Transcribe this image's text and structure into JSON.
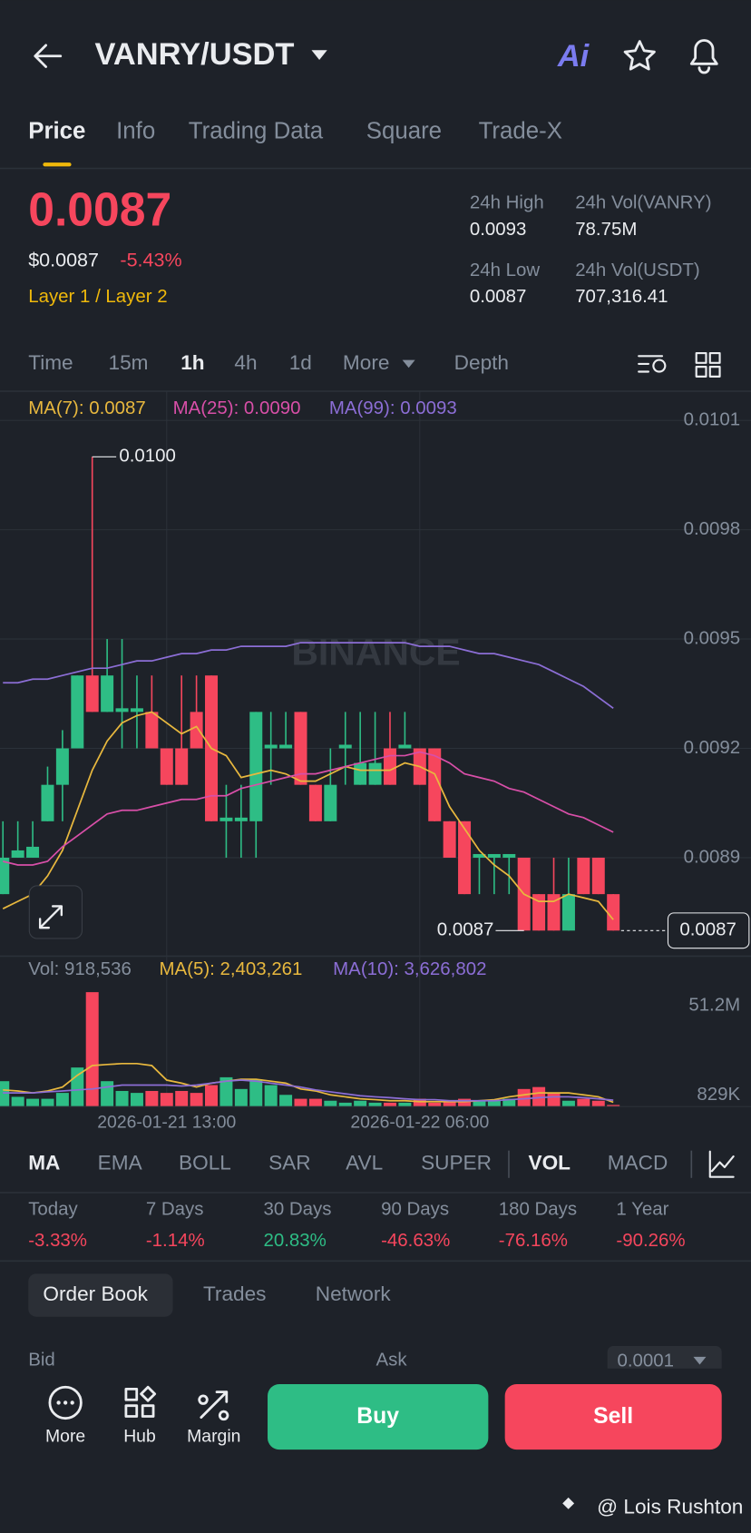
{
  "header": {
    "title": "VANRY/USDT",
    "ai_badge": "Ai"
  },
  "tabs": {
    "items": [
      "Price",
      "Info",
      "Trading Data",
      "Square",
      "Trade-X"
    ],
    "active": 0
  },
  "price": {
    "last": "0.0087",
    "usd": "$0.0087",
    "change": "-5.43%",
    "sector": "Layer 1 / Layer 2"
  },
  "stats": [
    {
      "label": "24h High",
      "value": "0.0093"
    },
    {
      "label": "24h Vol(VANRY)",
      "value": "78.75M"
    },
    {
      "label": "24h Low",
      "value": "0.0087"
    },
    {
      "label": "24h Vol(USDT)",
      "value": "707,316.41"
    }
  ],
  "intervals": {
    "items": [
      "Time",
      "15m",
      "1h",
      "4h",
      "1d",
      "More",
      "Depth"
    ],
    "active": 2
  },
  "chart_data": [
    {
      "type": "candlestick",
      "watermark": "BINANCE",
      "up_color": "#2ebd85",
      "down_color": "#f6465d",
      "open": [
        0.0088,
        0.0089,
        0.0089,
        0.009,
        0.0091,
        0.0092,
        0.0094,
        0.0093,
        0.0093,
        0.0093,
        0.0093,
        0.0092,
        0.0092,
        0.0093,
        0.0094,
        0.009,
        0.009,
        0.009,
        0.0092,
        0.0092,
        0.0093,
        0.0091,
        0.009,
        0.0092,
        0.0091,
        0.0091,
        0.0092,
        0.0092,
        0.0092,
        0.0092,
        0.009,
        0.009,
        0.0089,
        0.0089,
        0.0089,
        0.0089,
        0.0088,
        0.0088,
        0.0087,
        0.0089,
        0.0089,
        0.0088
      ],
      "high": [
        0.009,
        0.009,
        0.009,
        0.00915,
        0.00925,
        0.0094,
        0.01,
        0.0095,
        0.0095,
        0.0094,
        0.0094,
        0.0092,
        0.0094,
        0.0094,
        0.0094,
        0.0091,
        0.0091,
        0.0093,
        0.0093,
        0.0093,
        0.0093,
        0.0091,
        0.0092,
        0.0093,
        0.0093,
        0.0093,
        0.0093,
        0.0093,
        0.0092,
        0.0092,
        0.009,
        0.009,
        0.0089,
        0.0089,
        0.0089,
        0.0089,
        0.0088,
        0.0089,
        0.0089,
        0.0089,
        0.0089,
        0.0088
      ],
      "low": [
        0.0088,
        0.0089,
        0.0089,
        0.009,
        0.009,
        0.0092,
        0.0093,
        0.0093,
        0.0092,
        0.0092,
        0.0092,
        0.0091,
        0.0091,
        0.0092,
        0.009,
        0.0089,
        0.0089,
        0.0089,
        0.0091,
        0.0092,
        0.0091,
        0.009,
        0.009,
        0.0091,
        0.0091,
        0.0091,
        0.0091,
        0.0092,
        0.0091,
        0.009,
        0.0089,
        0.0088,
        0.0088,
        0.0088,
        0.0088,
        0.0087,
        0.0087,
        0.0087,
        0.0087,
        0.0088,
        0.0088,
        0.0087
      ],
      "close": [
        0.0089,
        0.00892,
        0.00893,
        0.0091,
        0.0092,
        0.0094,
        0.0093,
        0.0094,
        0.00931,
        0.00931,
        0.0092,
        0.0091,
        0.0091,
        0.0092,
        0.009,
        0.00901,
        0.00901,
        0.0093,
        0.00921,
        0.00921,
        0.0091,
        0.009,
        0.0091,
        0.00921,
        0.00916,
        0.00916,
        0.0091,
        0.00921,
        0.0091,
        0.009,
        0.0089,
        0.0088,
        0.00891,
        0.00891,
        0.00891,
        0.0087,
        0.0087,
        0.0087,
        0.0088,
        0.0088,
        0.0088,
        0.0087
      ],
      "ylim": [
        0.00863,
        0.01018
      ],
      "yticks": [
        0.0101,
        0.0098,
        0.0095,
        0.0092,
        0.0089
      ],
      "high_marker": {
        "value": 0.01,
        "label": "0.0100"
      },
      "low_marker": {
        "value": 0.0087,
        "label": "0.0087"
      },
      "last_price": {
        "value": 0.0087,
        "label": "0.0087"
      },
      "series": [
        {
          "name": "MA(7): 0.0087",
          "color": "#e8b83e",
          "values": [
            0.00876,
            0.00878,
            0.0088,
            0.00885,
            0.00892,
            0.00903,
            0.00914,
            0.00922,
            0.00927,
            0.00929,
            0.0093,
            0.00927,
            0.00924,
            0.00926,
            0.0092,
            0.00918,
            0.00912,
            0.00913,
            0.00914,
            0.00913,
            0.00911,
            0.00911,
            0.00913,
            0.00915,
            0.00914,
            0.00914,
            0.00914,
            0.00916,
            0.00915,
            0.00913,
            0.00904,
            0.00898,
            0.00892,
            0.00888,
            0.00885,
            0.0088,
            0.00878,
            0.00878,
            0.0088,
            0.00879,
            0.00878,
            0.00873
          ]
        },
        {
          "name": "MA(25): 0.0090",
          "color": "#d84fa8",
          "values": [
            0.00889,
            0.00888,
            0.00888,
            0.00889,
            0.00893,
            0.00896,
            0.00899,
            0.00902,
            0.00903,
            0.00903,
            0.00904,
            0.00905,
            0.00906,
            0.00906,
            0.00907,
            0.00907,
            0.00909,
            0.0091,
            0.00911,
            0.00912,
            0.00913,
            0.00913,
            0.00914,
            0.00915,
            0.00916,
            0.00917,
            0.00918,
            0.00918,
            0.00919,
            0.00918,
            0.00916,
            0.00913,
            0.00912,
            0.00911,
            0.00909,
            0.00908,
            0.00906,
            0.00904,
            0.00902,
            0.00901,
            0.00899,
            0.00897
          ]
        },
        {
          "name": "MA(99): 0.0093",
          "color": "#8c6ed6",
          "values": [
            0.00938,
            0.00938,
            0.00939,
            0.00939,
            0.0094,
            0.00941,
            0.00942,
            0.00942,
            0.00943,
            0.00944,
            0.00944,
            0.00945,
            0.00946,
            0.00946,
            0.00947,
            0.00947,
            0.00948,
            0.00948,
            0.00948,
            0.00948,
            0.00949,
            0.00949,
            0.00949,
            0.00949,
            0.00949,
            0.00949,
            0.00949,
            0.00949,
            0.00948,
            0.00948,
            0.00948,
            0.00947,
            0.00946,
            0.00946,
            0.00945,
            0.00944,
            0.00943,
            0.00941,
            0.00939,
            0.00937,
            0.00934,
            0.00931
          ]
        }
      ]
    },
    {
      "type": "bar",
      "title": "Vol: 918,536",
      "categories": [
        null,
        null,
        null,
        null,
        null,
        null,
        null,
        null,
        null,
        null,
        null,
        "2026-01-21 13:00",
        null,
        null,
        null,
        null,
        null,
        null,
        null,
        null,
        null,
        null,
        null,
        null,
        null,
        null,
        null,
        null,
        "2026-01-22 06:00",
        null,
        null,
        null,
        null,
        null,
        null,
        null,
        null,
        null,
        null,
        null,
        null,
        null
      ],
      "values": [
        14300000,
        5500000,
        4400000,
        4400000,
        7700000,
        22000000,
        64400000,
        14300000,
        8800000,
        7700000,
        8800000,
        7700000,
        8800000,
        7700000,
        12100000,
        16500000,
        9900000,
        15400000,
        12100000,
        6600000,
        4400000,
        4400000,
        3300000,
        2200000,
        3300000,
        2200000,
        2200000,
        2200000,
        4400000,
        2200000,
        3300000,
        4400000,
        3300000,
        3300000,
        4400000,
        9900000,
        11000000,
        7700000,
        3300000,
        4400000,
        3300000,
        918536
      ],
      "ylim": [
        0,
        72600000
      ],
      "yticks": [
        {
          "value": 51200000,
          "label": "51.2M"
        },
        {
          "value": 829000,
          "label": "829K"
        }
      ],
      "series": [
        {
          "name": "MA(5): 2,403,261",
          "color": "#e8b83e",
          "values": [
            9400000,
            8800000,
            7700000,
            8800000,
            11000000,
            17600000,
            23100000,
            23700000,
            24200000,
            24200000,
            23100000,
            14900000,
            13200000,
            11000000,
            13200000,
            14300000,
            15400000,
            15400000,
            14300000,
            13200000,
            9900000,
            8800000,
            6600000,
            5500000,
            4400000,
            3900000,
            3300000,
            3300000,
            2800000,
            2800000,
            2800000,
            2800000,
            3300000,
            3900000,
            5500000,
            6600000,
            7700000,
            7700000,
            7700000,
            6600000,
            5500000,
            2403261
          ]
        },
        {
          "name": "MA(10): 3,626,802",
          "color": "#8c6ed6",
          "values": [
            7700000,
            7700000,
            7700000,
            8300000,
            8800000,
            9400000,
            9900000,
            11000000,
            12100000,
            12100000,
            12100000,
            12100000,
            11600000,
            12100000,
            13200000,
            14300000,
            14900000,
            14300000,
            13200000,
            12100000,
            11000000,
            9400000,
            8300000,
            7200000,
            6100000,
            5500000,
            5000000,
            4400000,
            3900000,
            3900000,
            3300000,
            3300000,
            3300000,
            3300000,
            3900000,
            4400000,
            5000000,
            5500000,
            5500000,
            5000000,
            4400000,
            3626802
          ]
        }
      ]
    }
  ],
  "indicators": {
    "main": [
      "MA",
      "EMA",
      "BOLL",
      "SAR",
      "AVL",
      "SUPER"
    ],
    "sub": [
      "VOL",
      "MACD"
    ],
    "active_main": 0,
    "active_sub": 0
  },
  "performance": [
    {
      "label": "Today",
      "value": "-3.33%"
    },
    {
      "label": "7 Days",
      "value": "-1.14%"
    },
    {
      "label": "30 Days",
      "value": "20.83%"
    },
    {
      "label": "90 Days",
      "value": "-46.63%"
    },
    {
      "label": "180 Days",
      "value": "-76.16%"
    },
    {
      "label": "1 Year",
      "value": "-90.26%"
    }
  ],
  "order_book": {
    "tabs": [
      "Order Book",
      "Trades",
      "Network"
    ],
    "active": 0,
    "bid": "Bid",
    "ask": "Ask",
    "step": "0.0001"
  },
  "bottom_bar": {
    "items": [
      "More",
      "Hub",
      "Margin"
    ],
    "buy": "Buy",
    "sell": "Sell"
  },
  "watermark": "@ Lois Rushton"
}
